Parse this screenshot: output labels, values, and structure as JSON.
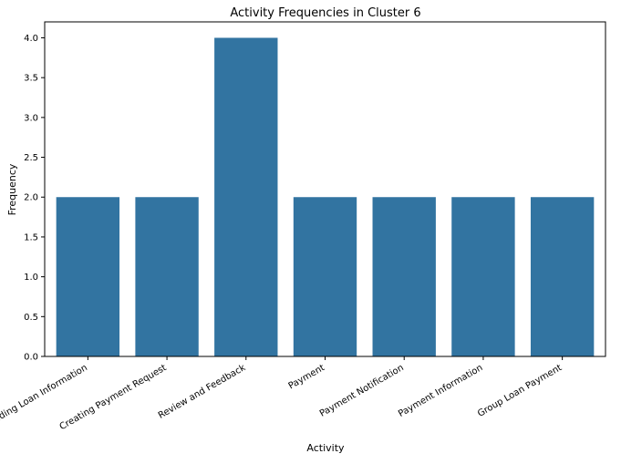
{
  "chart_data": {
    "type": "bar",
    "title": "Activity Frequencies in Cluster 6",
    "xlabel": "Activity",
    "ylabel": "Frequency",
    "categories": [
      "Reading Loan Information",
      "Creating Payment Request",
      "Review and Feedback",
      "Payment",
      "Payment Notification",
      "Payment Information",
      "Group Loan Payment"
    ],
    "values": [
      2,
      2,
      4,
      2,
      2,
      2,
      2
    ],
    "ylim": [
      0,
      4.2
    ],
    "yticks": [
      "0.0",
      "0.5",
      "1.0",
      "1.5",
      "2.0",
      "2.5",
      "3.0",
      "3.5",
      "4.0"
    ],
    "grid": false,
    "bar_color": "#3274a1",
    "x_tick_rotation_deg": 30
  }
}
